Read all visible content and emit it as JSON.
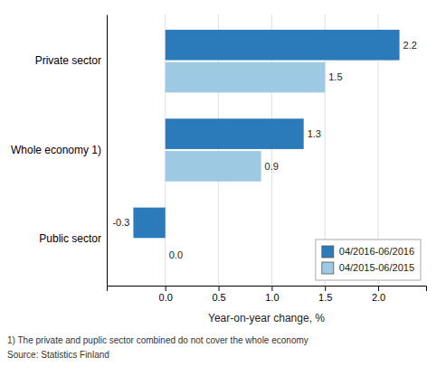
{
  "chart_data": {
    "type": "bar",
    "orientation": "horizontal",
    "categories": [
      "Public sector",
      "Whole economy 1)",
      "Private sector"
    ],
    "series": [
      {
        "name": "04/2016-06/2016",
        "color": "#2b7bba",
        "values": [
          -0.3,
          1.3,
          2.2
        ],
        "value_labels": [
          "-0.3",
          "1.3",
          "2.2"
        ]
      },
      {
        "name": "04/2015-06/2015",
        "color": "#9ec9e2",
        "values": [
          0.0,
          0.9,
          1.5
        ],
        "value_labels": [
          "0.0",
          "0.9",
          "1.5"
        ]
      }
    ],
    "xlabel": "Year-on-year change, %",
    "xlim": [
      -0.55,
      2.45
    ],
    "xticks": [
      {
        "value": 0.0,
        "label": "0.0"
      },
      0.5,
      {
        "value": 1.0,
        "label": "1.0"
      },
      1.5,
      {
        "value": 2.0,
        "label": "2.0"
      }
    ],
    "grid": true,
    "legend": "lower right",
    "data_labels": true,
    "annotations": [
      "1) The private and puplic sector combined do not cover the whole economy",
      "Source: Statistics Finland"
    ]
  }
}
